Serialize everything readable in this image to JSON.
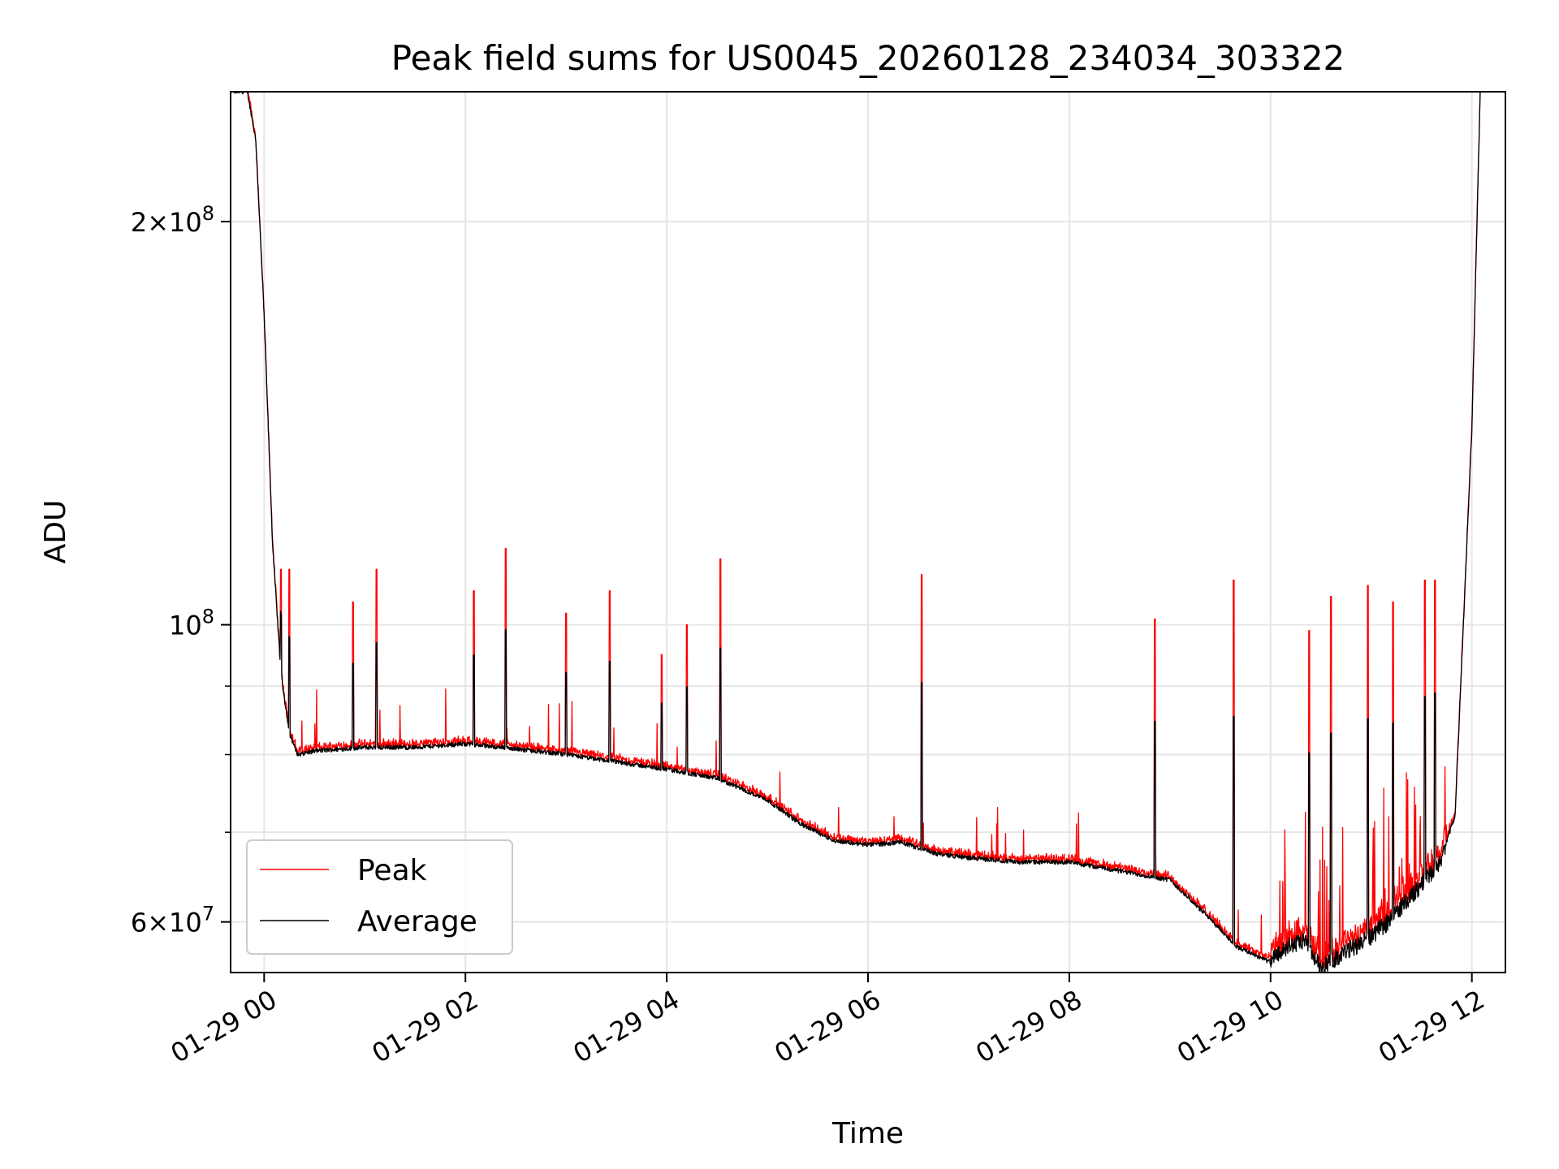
{
  "chart_data": {
    "type": "line",
    "title": "Peak field sums for US0045_20260128_234034_303322",
    "xlabel": "Time",
    "ylabel": "ADU",
    "y_scale": "log",
    "ylim": [
      55000000,
      250000000
    ],
    "xlim": [
      "01-28 23:40",
      "01-29 12:20"
    ],
    "x_ticks": [
      "01-29 00",
      "01-29 02",
      "01-29 04",
      "01-29 06",
      "01-29 08",
      "01-29 10",
      "01-29 12"
    ],
    "y_ticks": [
      {
        "value": 200000000,
        "mantissa": "2",
        "exp": "8"
      },
      {
        "value": 100000000,
        "mantissa": "",
        "exp": "8"
      },
      {
        "value": 60000000,
        "mantissa": "6",
        "exp": "7"
      }
    ],
    "y_minor_ticks": [
      70000000,
      80000000,
      90000000
    ],
    "grid": true,
    "legend_position": "lower-left",
    "series": [
      {
        "name": "Peak",
        "color": "#ff0000"
      },
      {
        "name": "Average",
        "color": "#000000"
      }
    ],
    "x": [
      "01-28 23:42",
      "01-28 23:50",
      "01-28 23:55",
      "01-29 00:00",
      "01-29 00:05",
      "01-29 00:10",
      "01-29 00:15",
      "01-29 00:20",
      "01-29 00:30",
      "01-29 01:00",
      "01-29 01:30",
      "01-29 02:00",
      "01-29 02:30",
      "01-29 03:00",
      "01-29 03:30",
      "01-29 04:00",
      "01-29 04:30",
      "01-29 05:00",
      "01-29 05:20",
      "01-29 05:40",
      "01-29 06:00",
      "01-29 06:20",
      "01-29 06:40",
      "01-29 07:00",
      "01-29 07:30",
      "01-29 08:00",
      "01-29 08:30",
      "01-29 09:00",
      "01-29 09:20",
      "01-29 09:40",
      "01-29 10:00",
      "01-29 10:10",
      "01-29 10:20",
      "01-29 10:30",
      "01-29 10:40",
      "01-29 11:00",
      "01-29 11:10",
      "01-29 11:20",
      "01-29 11:30",
      "01-29 11:40",
      "01-29 11:50",
      "01-29 12:00",
      "01-29 12:05"
    ],
    "average": [
      250000000,
      250000000,
      230000000,
      170000000,
      115000000,
      92000000,
      83000000,
      80000000,
      80500000,
      81000000,
      81000000,
      81500000,
      80800000,
      80000000,
      79000000,
      78000000,
      76800000,
      74000000,
      71000000,
      69000000,
      68500000,
      68800000,
      67500000,
      67000000,
      66500000,
      66500000,
      65500000,
      64500000,
      61000000,
      57500000,
      56000000,
      57500000,
      58000000,
      55500000,
      56500000,
      58500000,
      60000000,
      62000000,
      64000000,
      66000000,
      72000000,
      140000000,
      250000000
    ],
    "peak_spikes": [
      {
        "x": "01-29 00:10",
        "y": 110000000
      },
      {
        "x": "01-29 00:15",
        "y": 110000000
      },
      {
        "x": "01-29 01:07",
        "y": 110000000
      },
      {
        "x": "01-29 00:53",
        "y": 104000000
      },
      {
        "x": "01-29 02:05",
        "y": 106000000
      },
      {
        "x": "01-29 02:24",
        "y": 114000000
      },
      {
        "x": "01-29 03:00",
        "y": 102000000
      },
      {
        "x": "01-29 03:26",
        "y": 106000000
      },
      {
        "x": "01-29 03:57",
        "y": 95000000
      },
      {
        "x": "01-29 04:12",
        "y": 100000000
      },
      {
        "x": "01-29 04:32",
        "y": 112000000
      },
      {
        "x": "01-29 06:32",
        "y": 109000000
      },
      {
        "x": "01-29 08:51",
        "y": 101000000
      },
      {
        "x": "01-29 09:38",
        "y": 108000000
      },
      {
        "x": "01-29 10:23",
        "y": 99000000
      },
      {
        "x": "01-29 10:36",
        "y": 105000000
      },
      {
        "x": "01-29 10:58",
        "y": 107000000
      },
      {
        "x": "01-29 11:13",
        "y": 104000000
      },
      {
        "x": "01-29 11:32",
        "y": 108000000
      },
      {
        "x": "01-29 11:38",
        "y": 108000000
      }
    ]
  }
}
